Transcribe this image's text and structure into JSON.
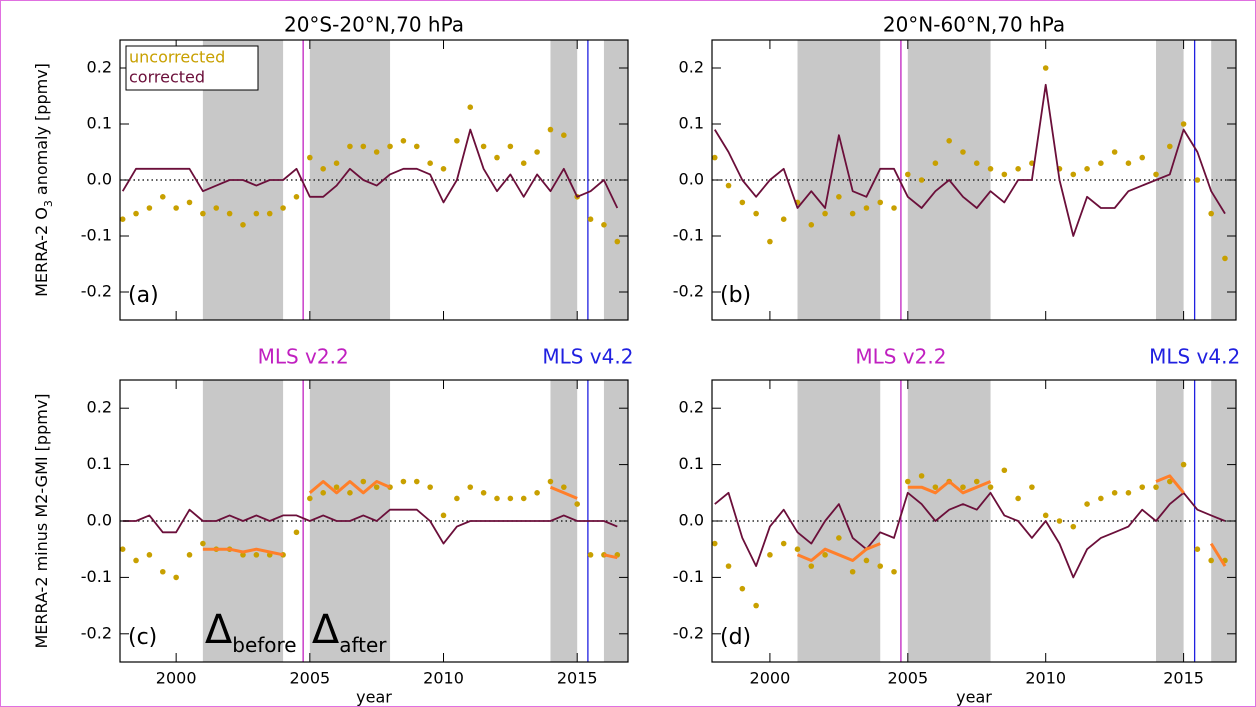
{
  "chart_data": [
    {
      "type": "line",
      "title": "20°S-20°N,70 hPa",
      "ylabel": "MERRA-2 O",
      "ylabel_sub": "3",
      "ylabel_tail": " anomaly [ppmv]",
      "panel_label": "(a)",
      "legend": "upper left",
      "xtick_labels": false,
      "zero_line": true,
      "xlim": [
        1997.9,
        2016.9
      ],
      "ylim": [
        -0.25,
        0.25
      ],
      "xticks": [
        2000,
        2005,
        2010,
        2015
      ],
      "yticks": [
        -0.2,
        -0.1,
        {
          "value": 0,
          "label": "0.0"
        },
        0.1,
        0.2
      ],
      "shaded": [
        [
          2001,
          2004
        ],
        [
          2005,
          2008
        ],
        [
          2014,
          2015
        ],
        [
          2016,
          2016.9
        ]
      ],
      "vlines": [
        {
          "x": 2004.75,
          "color": "#c020c0"
        },
        {
          "x": 2015.4,
          "color": "#2020e0"
        }
      ],
      "x": [
        1998,
        1998.5,
        1999,
        1999.5,
        2000,
        2000.5,
        2001,
        2001.5,
        2002,
        2002.5,
        2003,
        2003.5,
        2004,
        2004.5,
        2005,
        2005.5,
        2006,
        2006.5,
        2007,
        2007.5,
        2008,
        2008.5,
        2009,
        2009.5,
        2010,
        2010.5,
        2011,
        2011.5,
        2012,
        2012.5,
        2013,
        2013.5,
        2014,
        2014.5,
        2015,
        2015.5,
        2016,
        2016.5
      ],
      "series": [
        {
          "name": "uncorrected",
          "type": "scatter",
          "color": "#c8a000",
          "values": [
            -0.07,
            -0.06,
            -0.05,
            -0.03,
            -0.05,
            -0.04,
            -0.06,
            -0.05,
            -0.06,
            -0.08,
            -0.06,
            -0.06,
            -0.05,
            -0.03,
            0.04,
            0.02,
            0.03,
            0.06,
            0.06,
            0.05,
            0.06,
            0.07,
            0.06,
            0.03,
            0.02,
            0.07,
            0.13,
            0.06,
            0.04,
            0.06,
            0.03,
            0.05,
            0.09,
            0.08,
            -0.03,
            -0.07,
            -0.08,
            -0.11
          ]
        },
        {
          "name": "corrected",
          "type": "line",
          "color": "#6b0f3a",
          "values": [
            -0.02,
            0.02,
            0.02,
            0.02,
            0.02,
            0.02,
            -0.02,
            -0.01,
            0.0,
            0.0,
            -0.01,
            0.0,
            0.0,
            0.02,
            -0.03,
            -0.03,
            -0.01,
            0.02,
            0.0,
            -0.01,
            0.01,
            0.02,
            0.02,
            0.01,
            -0.04,
            0.0,
            0.09,
            0.02,
            -0.02,
            0.01,
            -0.03,
            0.01,
            -0.02,
            0.02,
            -0.03,
            -0.02,
            0.0,
            -0.05
          ]
        }
      ]
    },
    {
      "type": "line",
      "title": "20°N-60°N,70 hPa",
      "panel_label": "(b)",
      "xtick_labels": false,
      "zero_line": true,
      "xlim": [
        1997.9,
        2016.9
      ],
      "ylim": [
        -0.25,
        0.25
      ],
      "xticks": [
        2000,
        2005,
        2010,
        2015
      ],
      "yticks": [
        -0.2,
        -0.1,
        {
          "value": 0,
          "label": "0.0"
        },
        0.1,
        0.2
      ],
      "shaded": [
        [
          2001,
          2004
        ],
        [
          2005,
          2008
        ],
        [
          2014,
          2015
        ],
        [
          2016,
          2016.9
        ]
      ],
      "vlines": [
        {
          "x": 2004.75,
          "color": "#c020c0"
        },
        {
          "x": 2015.4,
          "color": "#2020e0"
        }
      ],
      "x": [
        1998,
        1998.5,
        1999,
        1999.5,
        2000,
        2000.5,
        2001,
        2001.5,
        2002,
        2002.5,
        2003,
        2003.5,
        2004,
        2004.5,
        2005,
        2005.5,
        2006,
        2006.5,
        2007,
        2007.5,
        2008,
        2008.5,
        2009,
        2009.5,
        2010,
        2010.5,
        2011,
        2011.5,
        2012,
        2012.5,
        2013,
        2013.5,
        2014,
        2014.5,
        2015,
        2015.5,
        2016,
        2016.5
      ],
      "series": [
        {
          "type": "scatter",
          "color": "#c8a000",
          "values": [
            0.04,
            -0.01,
            -0.04,
            -0.06,
            -0.11,
            -0.07,
            -0.04,
            -0.08,
            -0.06,
            -0.03,
            -0.06,
            -0.05,
            -0.04,
            -0.05,
            0.01,
            0.0,
            0.03,
            0.07,
            0.05,
            0.03,
            0.02,
            0.01,
            0.02,
            0.03,
            0.2,
            0.02,
            0.01,
            0.02,
            0.03,
            0.05,
            0.03,
            0.04,
            0.01,
            0.06,
            0.1,
            0.0,
            -0.06,
            -0.14
          ]
        },
        {
          "type": "line",
          "color": "#6b0f3a",
          "values": [
            0.09,
            0.05,
            0.0,
            -0.03,
            0.0,
            0.02,
            -0.05,
            -0.02,
            -0.05,
            0.08,
            -0.02,
            -0.03,
            0.02,
            0.02,
            -0.03,
            -0.05,
            -0.02,
            0.0,
            -0.03,
            -0.05,
            -0.02,
            -0.04,
            0.0,
            0.0,
            0.17,
            0.0,
            -0.1,
            -0.03,
            -0.05,
            -0.05,
            -0.02,
            -0.01,
            0.0,
            0.01,
            0.09,
            0.05,
            -0.02,
            -0.06
          ]
        }
      ]
    },
    {
      "type": "line",
      "ylabel": "MERRA-2 minus M2-GMI [ppmv]",
      "xlabel": "year",
      "panel_label": "(c)",
      "xtick_labels": true,
      "zero_line": true,
      "xlim": [
        1997.9,
        2016.9
      ],
      "ylim": [
        -0.25,
        0.25
      ],
      "xticks": [
        2000,
        2005,
        2010,
        2015
      ],
      "yticks": [
        -0.2,
        -0.1,
        {
          "value": 0,
          "label": "0.0"
        },
        0.1,
        0.2
      ],
      "shaded": [
        [
          2001,
          2004
        ],
        [
          2005,
          2008
        ],
        [
          2014,
          2015
        ],
        [
          2016,
          2016.9
        ]
      ],
      "vlines": [
        {
          "x": 2004.75,
          "color": "#c020c0",
          "label": "MLS v2.2"
        },
        {
          "x": 2015.4,
          "color": "#2020e0",
          "label": "MLS v4.2"
        }
      ],
      "delta_labels": [
        {
          "text": "Δ",
          "sub": "before"
        },
        {
          "text": "Δ",
          "sub": "after"
        }
      ],
      "x": [
        1998,
        1998.5,
        1999,
        1999.5,
        2000,
        2000.5,
        2001,
        2001.5,
        2002,
        2002.5,
        2003,
        2003.5,
        2004,
        2004.5,
        2005,
        2005.5,
        2006,
        2006.5,
        2007,
        2007.5,
        2008,
        2008.5,
        2009,
        2009.5,
        2010,
        2010.5,
        2011,
        2011.5,
        2012,
        2012.5,
        2013,
        2013.5,
        2014,
        2014.5,
        2015,
        2015.5,
        2016,
        2016.5
      ],
      "series": [
        {
          "type": "scatter",
          "color": "#c8a000",
          "values": [
            -0.05,
            -0.07,
            -0.06,
            -0.09,
            -0.1,
            -0.06,
            -0.04,
            -0.05,
            -0.05,
            -0.06,
            -0.06,
            -0.06,
            -0.06,
            -0.02,
            0.04,
            0.05,
            0.06,
            0.05,
            0.07,
            0.06,
            0.06,
            0.07,
            0.07,
            0.06,
            0.01,
            0.04,
            0.06,
            0.05,
            0.04,
            0.04,
            0.04,
            0.05,
            0.07,
            0.06,
            0.03,
            -0.06,
            -0.06,
            -0.06
          ]
        },
        {
          "type": "line",
          "color": "#6b0f3a",
          "values": [
            0.0,
            0.0,
            0.01,
            -0.02,
            -0.02,
            0.02,
            0.0,
            0.0,
            0.01,
            0.0,
            0.01,
            0.0,
            0.01,
            0.01,
            0.0,
            0.01,
            0.0,
            0.0,
            0.01,
            0.0,
            0.02,
            0.02,
            0.02,
            0.0,
            -0.04,
            -0.01,
            0.0,
            0.0,
            0.0,
            0.0,
            0.0,
            0.0,
            0.0,
            0.01,
            0.0,
            0.0,
            0.0,
            -0.01
          ]
        },
        {
          "type": "line",
          "color": "#ff7f2a",
          "width": 3,
          "values": [
            null,
            null,
            null,
            null,
            null,
            null,
            -0.05,
            -0.05,
            -0.05,
            -0.055,
            -0.05,
            -0.055,
            -0.06,
            null,
            0.05,
            0.07,
            0.05,
            0.07,
            0.05,
            0.07,
            0.06,
            null,
            null,
            null,
            null,
            null,
            null,
            null,
            null,
            null,
            null,
            null,
            0.06,
            0.05,
            0.04,
            null,
            -0.06,
            -0.065
          ]
        }
      ]
    },
    {
      "type": "line",
      "xlabel": "year",
      "panel_label": "(d)",
      "xtick_labels": true,
      "zero_line": true,
      "xlim": [
        1997.9,
        2016.9
      ],
      "ylim": [
        -0.25,
        0.25
      ],
      "xticks": [
        2000,
        2005,
        2010,
        2015
      ],
      "yticks": [
        -0.2,
        -0.1,
        {
          "value": 0,
          "label": "0.0"
        },
        0.1,
        0.2
      ],
      "shaded": [
        [
          2001,
          2004
        ],
        [
          2005,
          2008
        ],
        [
          2014,
          2015
        ],
        [
          2016,
          2016.9
        ]
      ],
      "vlines": [
        {
          "x": 2004.75,
          "color": "#c020c0",
          "label": "MLS v2.2"
        },
        {
          "x": 2015.4,
          "color": "#2020e0",
          "label": "MLS v4.2"
        }
      ],
      "x": [
        1998,
        1998.5,
        1999,
        1999.5,
        2000,
        2000.5,
        2001,
        2001.5,
        2002,
        2002.5,
        2003,
        2003.5,
        2004,
        2004.5,
        2005,
        2005.5,
        2006,
        2006.5,
        2007,
        2007.5,
        2008,
        2008.5,
        2009,
        2009.5,
        2010,
        2010.5,
        2011,
        2011.5,
        2012,
        2012.5,
        2013,
        2013.5,
        2014,
        2014.5,
        2015,
        2015.5,
        2016,
        2016.5
      ],
      "series": [
        {
          "type": "scatter",
          "color": "#c8a000",
          "values": [
            -0.04,
            -0.08,
            -0.12,
            -0.15,
            -0.06,
            -0.04,
            -0.05,
            -0.08,
            -0.06,
            -0.03,
            -0.09,
            -0.07,
            -0.08,
            -0.09,
            0.07,
            0.08,
            0.06,
            0.07,
            0.06,
            0.07,
            0.06,
            0.09,
            0.04,
            0.06,
            0.01,
            0.0,
            -0.01,
            0.03,
            0.04,
            0.05,
            0.05,
            0.06,
            0.06,
            0.07,
            0.1,
            -0.05,
            -0.07,
            -0.07
          ]
        },
        {
          "type": "line",
          "color": "#6b0f3a",
          "values": [
            0.03,
            0.05,
            -0.03,
            -0.08,
            -0.01,
            0.02,
            -0.02,
            -0.04,
            0.0,
            0.03,
            -0.03,
            -0.05,
            -0.02,
            -0.03,
            0.05,
            0.03,
            0.0,
            0.02,
            0.03,
            0.02,
            0.05,
            0.01,
            0.0,
            -0.03,
            0.0,
            -0.04,
            -0.1,
            -0.05,
            -0.03,
            -0.02,
            -0.01,
            0.02,
            0.0,
            0.03,
            0.05,
            0.02,
            0.01,
            0.0
          ]
        },
        {
          "type": "line",
          "color": "#ff7f2a",
          "width": 3,
          "values": [
            null,
            null,
            null,
            null,
            null,
            null,
            -0.06,
            -0.07,
            -0.05,
            -0.06,
            -0.07,
            -0.05,
            -0.04,
            null,
            0.06,
            0.06,
            0.05,
            0.07,
            0.05,
            0.06,
            0.07,
            null,
            null,
            null,
            null,
            null,
            null,
            null,
            null,
            null,
            null,
            null,
            0.07,
            0.08,
            0.05,
            null,
            -0.04,
            -0.08
          ]
        }
      ]
    }
  ]
}
